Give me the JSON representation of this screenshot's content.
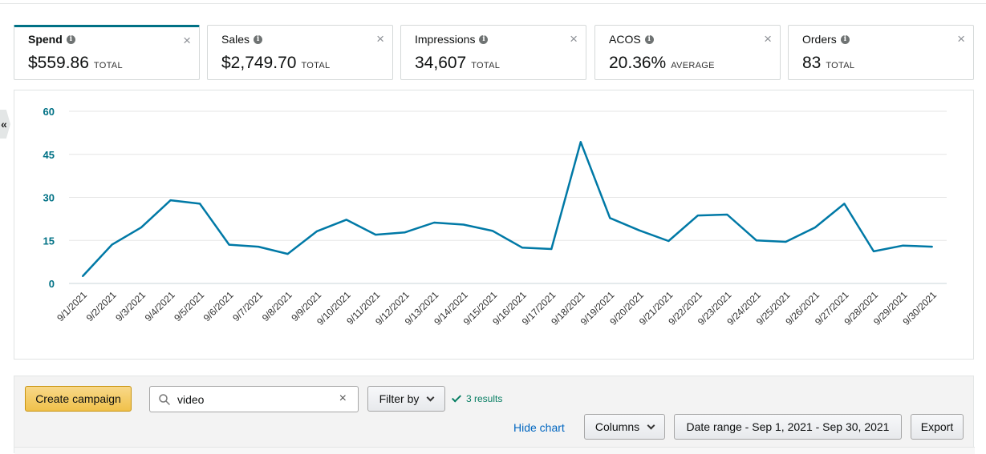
{
  "metrics": [
    {
      "name": "Spend",
      "value": "$559.86",
      "unit": "TOTAL",
      "active": true
    },
    {
      "name": "Sales",
      "value": "$2,749.70",
      "unit": "TOTAL",
      "active": false
    },
    {
      "name": "Impressions",
      "value": "34,607",
      "unit": "TOTAL",
      "active": false
    },
    {
      "name": "ACOS",
      "value": "20.36%",
      "unit": "AVERAGE",
      "active": false
    },
    {
      "name": "Orders",
      "value": "83",
      "unit": "TOTAL",
      "active": false
    }
  ],
  "icons": {
    "info": "i",
    "close": "×",
    "collapse": "«",
    "clear": "×"
  },
  "colors": {
    "accent": "#007185",
    "line": "#0079a6",
    "axis_label": "#007185",
    "primary_button": "#f0c14b",
    "success": "#067d62",
    "link": "#0066c0"
  },
  "chart_data": {
    "type": "line",
    "categories": [
      "9/1/2021",
      "9/2/2021",
      "9/3/2021",
      "9/4/2021",
      "9/5/2021",
      "9/6/2021",
      "9/7/2021",
      "9/8/2021",
      "9/9/2021",
      "9/10/2021",
      "9/11/2021",
      "9/12/2021",
      "9/13/2021",
      "9/14/2021",
      "9/15/2021",
      "9/16/2021",
      "9/17/2021",
      "9/18/2021",
      "9/19/2021",
      "9/20/2021",
      "9/21/2021",
      "9/22/2021",
      "9/23/2021",
      "9/24/2021",
      "9/25/2021",
      "9/26/2021",
      "9/27/2021",
      "9/28/2021",
      "9/29/2021",
      "9/30/2021"
    ],
    "series": [
      {
        "values": [
          2.5,
          13.5,
          19.5,
          29,
          27.8,
          13.5,
          12.8,
          10.3,
          18.2,
          22.2,
          17,
          17.8,
          21.2,
          20.5,
          18.3,
          12.5,
          12,
          49.3,
          22.8,
          18.5,
          14.8,
          23.7,
          24,
          15,
          14.5,
          19.5,
          27.8,
          11.2,
          13.2,
          12.8
        ]
      }
    ],
    "yticks": [
      0,
      15,
      30,
      45,
      60
    ],
    "ylim": [
      0,
      60
    ],
    "grid": true
  },
  "toolbar": {
    "create_campaign": "Create campaign",
    "search_value": "video",
    "filter_by": "Filter by",
    "results": "3 results",
    "hide_chart": "Hide chart",
    "columns": "Columns",
    "date_range": "Date range - Sep 1, 2021 - Sep 30, 2021",
    "export": "Export"
  }
}
